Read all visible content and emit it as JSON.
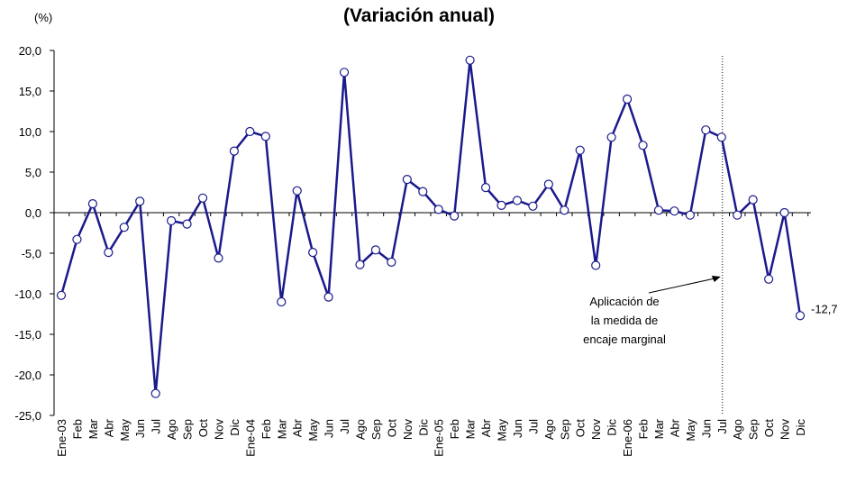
{
  "chart_data": {
    "type": "line",
    "title": "(Variación anual)",
    "y_unit": "(%)",
    "categories": [
      "Ene-03",
      "Feb",
      "Mar",
      "Abr",
      "May",
      "Jun",
      "Jul",
      "Ago",
      "Sep",
      "Oct",
      "Nov",
      "Dic",
      "Ene-04",
      "Feb",
      "Mar",
      "Abr",
      "May",
      "Jun",
      "Jul",
      "Ago",
      "Sep",
      "Oct",
      "Nov",
      "Dic",
      "Ene-05",
      "Feb",
      "Mar",
      "Abr",
      "May",
      "Jun",
      "Jul",
      "Ago",
      "Sep",
      "Oct",
      "Nov",
      "Dic",
      "Ene-06",
      "Feb",
      "Mar",
      "Abr",
      "May",
      "Jun",
      "Jul",
      "Ago",
      "Sep",
      "Oct",
      "Nov",
      "Dic"
    ],
    "series": [
      {
        "color": "#1a1a8c",
        "values": [
          -10.2,
          -3.3,
          1.1,
          -4.9,
          -1.8,
          1.4,
          -22.3,
          -1.0,
          -1.4,
          1.8,
          -5.6,
          7.6,
          10.0,
          9.4,
          -11.0,
          2.7,
          -4.9,
          -10.4,
          17.3,
          -6.4,
          -4.6,
          -6.1,
          4.1,
          2.6,
          0.4,
          -0.4,
          18.8,
          3.1,
          0.9,
          1.5,
          0.8,
          3.5,
          0.3,
          7.7,
          -6.5,
          9.3,
          14.0,
          8.3,
          0.3,
          0.2,
          -0.3,
          10.2,
          9.3,
          -0.3,
          1.6,
          -8.2,
          0.0,
          -12.7
        ],
        "value_labels": [
          null,
          null,
          null,
          null,
          null,
          null,
          null,
          null,
          null,
          null,
          null,
          null,
          null,
          null,
          null,
          null,
          null,
          null,
          null,
          null,
          null,
          null,
          null,
          null,
          null,
          null,
          null,
          null,
          null,
          null,
          null,
          null,
          null,
          null,
          null,
          null,
          null,
          null,
          null,
          null,
          null,
          null,
          null,
          null,
          null,
          null,
          null,
          "-12,7"
        ]
      }
    ],
    "ylim": [
      -25,
      20
    ],
    "yticks": [
      {
        "value": -25,
        "label": "-25,0"
      },
      {
        "value": -20,
        "label": "-20,0"
      },
      {
        "value": -15,
        "label": "-15,0"
      },
      {
        "value": -10,
        "label": "-10,0"
      },
      {
        "value": -5,
        "label": "-5,0"
      },
      {
        "value": 0,
        "label": "0,0"
      },
      {
        "value": 5,
        "label": "5,0"
      },
      {
        "value": 10,
        "label": "10,0"
      },
      {
        "value": 15,
        "label": "15,0"
      },
      {
        "value": 20,
        "label": "20,0"
      }
    ],
    "annotation": [
      "Aplicación de",
      "la medida de",
      "encaje marginal"
    ]
  }
}
